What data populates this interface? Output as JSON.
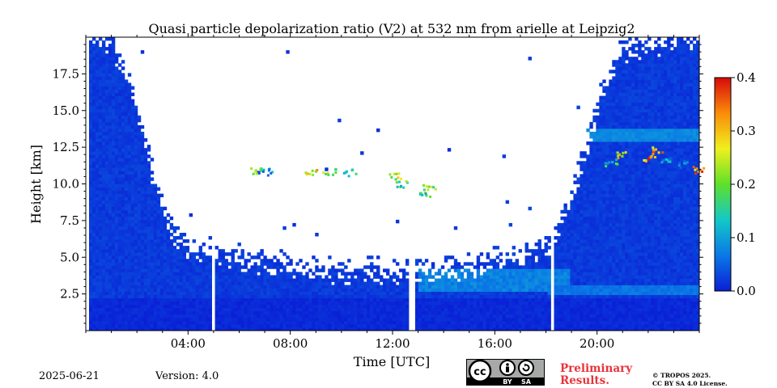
{
  "chart_data": {
    "type": "heatmap",
    "title": "Quasi particle depolarization ratio (V2) at 532 nm from arielle at Leipzig2",
    "xlabel": "Time [UTC]",
    "ylabel": "Height [km]",
    "xlim": [
      0,
      24
    ],
    "ylim": [
      0,
      20
    ],
    "x_ticks": [
      {
        "value": 4,
        "label": "04:00"
      },
      {
        "value": 8,
        "label": "08:00"
      },
      {
        "value": 12,
        "label": "12:00"
      },
      {
        "value": 16,
        "label": "16:00"
      },
      {
        "value": 20,
        "label": "20:00"
      }
    ],
    "y_ticks": [
      {
        "value": 2.5,
        "label": "2.5"
      },
      {
        "value": 5.0,
        "label": "5.0"
      },
      {
        "value": 7.5,
        "label": "7.5"
      },
      {
        "value": 10.0,
        "label": "10.0"
      },
      {
        "value": 12.5,
        "label": "12.5"
      },
      {
        "value": 15.0,
        "label": "15.0"
      },
      {
        "value": 17.5,
        "label": "17.5"
      }
    ],
    "colorbar": {
      "range": [
        0,
        0.4
      ],
      "ticks": [
        {
          "value": 0.0,
          "label": "0.0"
        },
        {
          "value": 0.1,
          "label": "0.1"
        },
        {
          "value": 0.2,
          "label": "0.2"
        },
        {
          "value": 0.3,
          "label": "0.3"
        },
        {
          "value": 0.4,
          "label": "0.4"
        }
      ],
      "colors": [
        "#0a1fd6",
        "#0a78e6",
        "#13c8c8",
        "#5ee02a",
        "#f0f01e",
        "#fa8c0a",
        "#d60a0a"
      ]
    },
    "data_gaps_utc": [
      5.0,
      12.75,
      18.25
    ],
    "signal_top_km": [
      {
        "t": 0.0,
        "h": 20.0
      },
      {
        "t": 1.0,
        "h": 19.5
      },
      {
        "t": 1.8,
        "h": 16.5
      },
      {
        "t": 2.3,
        "h": 13.0
      },
      {
        "t": 2.7,
        "h": 10.0
      },
      {
        "t": 3.2,
        "h": 7.0
      },
      {
        "t": 4.0,
        "h": 5.5
      },
      {
        "t": 6.0,
        "h": 4.8
      },
      {
        "t": 9.0,
        "h": 4.0
      },
      {
        "t": 12.0,
        "h": 3.9
      },
      {
        "t": 15.0,
        "h": 4.2
      },
      {
        "t": 17.0,
        "h": 5.0
      },
      {
        "t": 18.3,
        "h": 6.0
      },
      {
        "t": 19.0,
        "h": 9.0
      },
      {
        "t": 19.5,
        "h": 12.0
      },
      {
        "t": 20.2,
        "h": 16.0
      },
      {
        "t": 21.0,
        "h": 19.0
      },
      {
        "t": 24.0,
        "h": 20.0
      }
    ],
    "cirrus_clusters": [
      {
        "t": 6.6,
        "h": 10.9,
        "v": 0.3
      },
      {
        "t": 7.1,
        "h": 10.9,
        "v": 0.15
      },
      {
        "t": 8.8,
        "h": 10.8,
        "v": 0.35
      },
      {
        "t": 9.5,
        "h": 10.9,
        "v": 0.3
      },
      {
        "t": 10.3,
        "h": 10.8,
        "v": 0.25
      },
      {
        "t": 12.1,
        "h": 10.6,
        "v": 0.3
      },
      {
        "t": 12.3,
        "h": 10.0,
        "v": 0.25
      },
      {
        "t": 13.4,
        "h": 9.8,
        "v": 0.3
      },
      {
        "t": 13.2,
        "h": 9.3,
        "v": 0.22
      },
      {
        "t": 20.5,
        "h": 11.5,
        "v": 0.2
      },
      {
        "t": 21.0,
        "h": 12.0,
        "v": 0.35
      },
      {
        "t": 22.0,
        "h": 11.8,
        "v": 0.4
      },
      {
        "t": 22.3,
        "h": 12.3,
        "v": 0.38
      },
      {
        "t": 22.7,
        "h": 11.6,
        "v": 0.15
      },
      {
        "t": 23.3,
        "h": 11.4,
        "v": 0.12
      },
      {
        "t": 23.9,
        "h": 11.0,
        "v": 0.4
      }
    ]
  },
  "footer": {
    "date": "2025-06-21",
    "version": "Version: 4.0",
    "preliminary_line1": "Preliminary",
    "preliminary_line2": "Results.",
    "copyright_line1": "© TROPOS 2025.",
    "copyright_line2": "CC BY SA 4.0 License.",
    "cc_badge": {
      "cc": "cc",
      "by": "BY",
      "sa": "SA",
      "icon": "cc-by-sa-license-icon"
    }
  }
}
